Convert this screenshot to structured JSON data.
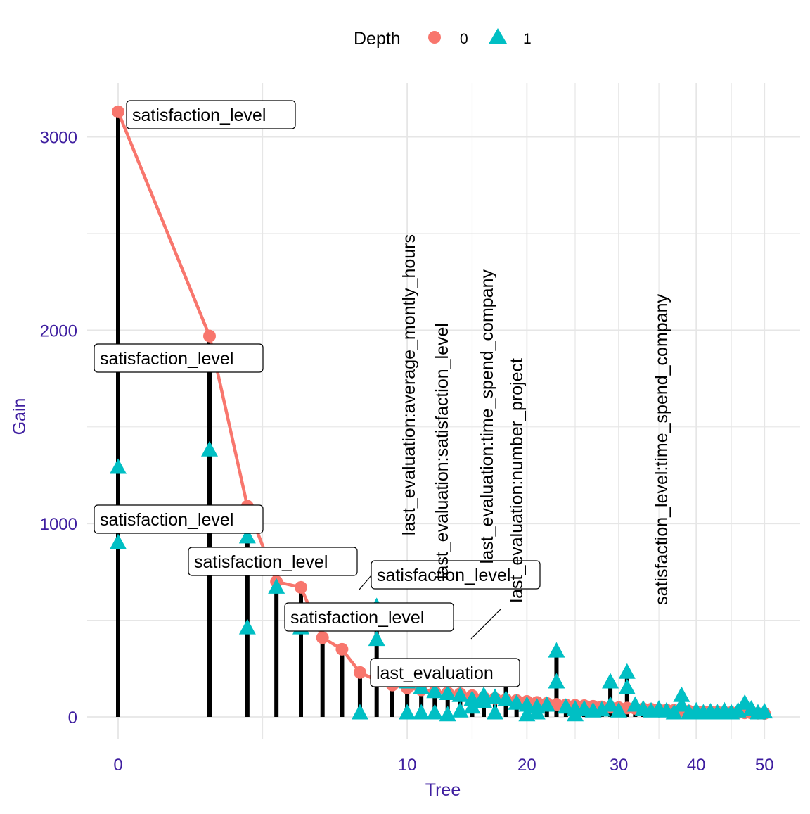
{
  "legend": {
    "title": "Depth",
    "items": [
      {
        "label": "0",
        "shape": "circle",
        "color": "#F8766D"
      },
      {
        "label": "1",
        "shape": "triangle",
        "color": "#00BFC4"
      }
    ]
  },
  "colors": {
    "depth0": "#F8766D",
    "depth0_line": "#F8766D",
    "depth1": "#00BFC4",
    "stem": "#000000",
    "axis_text": "#3F1FA0",
    "grid": "#E6E6E6"
  },
  "chart_data": {
    "type": "scatter",
    "xlabel": "Tree",
    "ylabel": "Gain",
    "x_scale": "sqrt",
    "xlim": [
      0,
      50
    ],
    "ylim": [
      0,
      3200
    ],
    "x_ticks": [
      0,
      10,
      20,
      30,
      40,
      50
    ],
    "y_ticks": [
      0,
      1000,
      2000,
      3000
    ],
    "grid": true,
    "legend_position": "top",
    "series": [
      {
        "name": "0",
        "shape": "circle",
        "points": [
          [
            0,
            3130
          ],
          [
            1,
            1970
          ],
          [
            2,
            1090
          ],
          [
            3,
            700
          ],
          [
            4,
            670
          ],
          [
            5,
            410
          ],
          [
            6,
            350
          ],
          [
            7,
            230
          ],
          [
            8,
            190
          ],
          [
            9,
            165
          ],
          [
            10,
            150
          ],
          [
            11,
            140
          ],
          [
            12,
            130
          ],
          [
            13,
            125
          ],
          [
            14,
            120
          ],
          [
            15,
            110
          ],
          [
            16,
            100
          ],
          [
            17,
            95
          ],
          [
            18,
            90
          ],
          [
            19,
            85
          ],
          [
            20,
            80
          ],
          [
            21,
            75
          ],
          [
            22,
            70
          ],
          [
            23,
            65
          ],
          [
            24,
            62
          ],
          [
            25,
            60
          ],
          [
            26,
            58
          ],
          [
            27,
            55
          ],
          [
            28,
            52
          ],
          [
            29,
            50
          ],
          [
            30,
            48
          ],
          [
            31,
            46
          ],
          [
            32,
            44
          ],
          [
            33,
            42
          ],
          [
            34,
            40
          ],
          [
            35,
            38
          ],
          [
            36,
            36
          ],
          [
            37,
            34
          ],
          [
            38,
            32
          ],
          [
            39,
            30
          ],
          [
            40,
            28
          ],
          [
            41,
            27
          ],
          [
            42,
            26
          ],
          [
            43,
            25
          ],
          [
            44,
            24
          ],
          [
            45,
            23
          ],
          [
            46,
            22
          ],
          [
            47,
            21
          ],
          [
            48,
            20
          ],
          [
            49,
            19
          ],
          [
            50,
            18
          ]
        ]
      },
      {
        "name": "1",
        "shape": "triangle",
        "points": [
          [
            0,
            1290
          ],
          [
            0,
            900
          ],
          [
            1,
            1380
          ],
          [
            2,
            930
          ],
          [
            2,
            460
          ],
          [
            3,
            670
          ],
          [
            4,
            460
          ],
          [
            7,
            20
          ],
          [
            8,
            570
          ],
          [
            8,
            400
          ],
          [
            10,
            180
          ],
          [
            10,
            20
          ],
          [
            11,
            150
          ],
          [
            11,
            20
          ],
          [
            12,
            130
          ],
          [
            12,
            20
          ],
          [
            13,
            120
          ],
          [
            13,
            10
          ],
          [
            14,
            110
          ],
          [
            14,
            30
          ],
          [
            15,
            90
          ],
          [
            15,
            50
          ],
          [
            16,
            110
          ],
          [
            16,
            80
          ],
          [
            17,
            100
          ],
          [
            17,
            20
          ],
          [
            18,
            260
          ],
          [
            18,
            90
          ],
          [
            19,
            70
          ],
          [
            20,
            60
          ],
          [
            20,
            10
          ],
          [
            21,
            50
          ],
          [
            21,
            20
          ],
          [
            22,
            60
          ],
          [
            23,
            340
          ],
          [
            23,
            180
          ],
          [
            24,
            50
          ],
          [
            25,
            40
          ],
          [
            25,
            10
          ],
          [
            26,
            40
          ],
          [
            27,
            30
          ],
          [
            28,
            35
          ],
          [
            29,
            180
          ],
          [
            29,
            60
          ],
          [
            30,
            30
          ],
          [
            31,
            230
          ],
          [
            31,
            150
          ],
          [
            32,
            60
          ],
          [
            33,
            40
          ],
          [
            34,
            30
          ],
          [
            35,
            40
          ],
          [
            36,
            30
          ],
          [
            37,
            20
          ],
          [
            38,
            110
          ],
          [
            38,
            60
          ],
          [
            39,
            20
          ],
          [
            40,
            30
          ],
          [
            41,
            20
          ],
          [
            42,
            25
          ],
          [
            43,
            20
          ],
          [
            44,
            30
          ],
          [
            45,
            20
          ],
          [
            46,
            30
          ],
          [
            47,
            70
          ],
          [
            48,
            40
          ],
          [
            49,
            20
          ],
          [
            50,
            25
          ]
        ]
      }
    ],
    "stems": [
      [
        0,
        3130
      ],
      [
        1,
        1970
      ],
      [
        2,
        1090
      ],
      [
        3,
        700
      ],
      [
        4,
        670
      ],
      [
        5,
        410
      ],
      [
        6,
        350
      ],
      [
        7,
        230
      ],
      [
        8,
        570
      ],
      [
        9,
        165
      ],
      [
        10,
        180
      ],
      [
        11,
        150
      ],
      [
        12,
        130
      ],
      [
        13,
        125
      ],
      [
        14,
        120
      ],
      [
        15,
        110
      ],
      [
        16,
        110
      ],
      [
        17,
        100
      ],
      [
        18,
        260
      ],
      [
        19,
        85
      ],
      [
        20,
        80
      ],
      [
        21,
        75
      ],
      [
        22,
        70
      ],
      [
        23,
        340
      ],
      [
        24,
        62
      ],
      [
        25,
        60
      ],
      [
        26,
        58
      ],
      [
        27,
        55
      ],
      [
        28,
        52
      ],
      [
        29,
        180
      ],
      [
        30,
        48
      ],
      [
        31,
        230
      ],
      [
        32,
        60
      ],
      [
        33,
        42
      ],
      [
        34,
        40
      ],
      [
        35,
        40
      ],
      [
        36,
        36
      ],
      [
        37,
        34
      ],
      [
        38,
        110
      ],
      [
        39,
        30
      ],
      [
        40,
        30
      ],
      [
        41,
        27
      ],
      [
        42,
        26
      ],
      [
        43,
        25
      ],
      [
        44,
        30
      ],
      [
        45,
        23
      ],
      [
        46,
        30
      ],
      [
        47,
        70
      ],
      [
        48,
        40
      ],
      [
        49,
        20
      ],
      [
        50,
        25
      ]
    ],
    "annotations": [
      {
        "text": "satisfaction_level",
        "x": 0,
        "y": 3130,
        "style": "box"
      },
      {
        "text": "satisfaction_level",
        "x": 1,
        "y": 1970,
        "style": "box"
      },
      {
        "text": "satisfaction_level",
        "x": 2,
        "y": 1090,
        "style": "box"
      },
      {
        "text": "satisfaction_level",
        "x": 3,
        "y": 700,
        "style": "box"
      },
      {
        "text": "satisfaction_level",
        "x": 4,
        "y": 670,
        "style": "box"
      },
      {
        "text": "satisfaction_level",
        "x": 4,
        "y": 460,
        "style": "box"
      },
      {
        "text": "last_evaluation",
        "x": 6,
        "y": 350,
        "style": "box"
      },
      {
        "text": "last_evaluation:average_montly_hours",
        "x": 5,
        "y": 410,
        "style": "vertical"
      },
      {
        "text": "last_evaluation:satisfaction_level",
        "x": 6,
        "y": 350,
        "style": "vertical"
      },
      {
        "text": "last_evaluation:time_spend_company",
        "x": 8,
        "y": 570,
        "style": "vertical"
      },
      {
        "text": "last_evaluation:number_project",
        "x": 8,
        "y": 400,
        "style": "vertical"
      },
      {
        "text": "satisfaction_level:time_spend_company",
        "x": 23,
        "y": 340,
        "style": "vertical"
      }
    ]
  }
}
